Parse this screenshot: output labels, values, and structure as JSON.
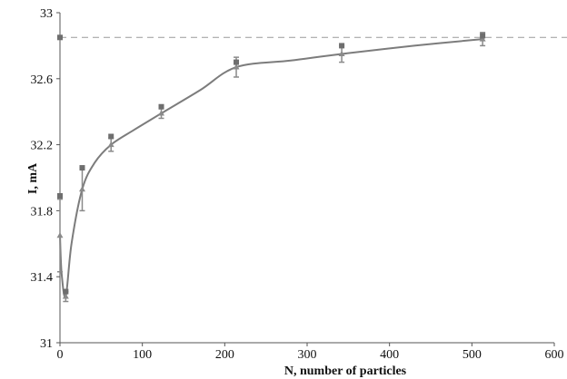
{
  "chart_data": {
    "type": "scatter",
    "title": "",
    "xlabel": "N, number of particles",
    "ylabel": "I, mA",
    "xlim": [
      0,
      600
    ],
    "ylim": [
      31,
      33
    ],
    "x_ticks": [
      "0",
      "100",
      "200",
      "300",
      "400",
      "500",
      "600"
    ],
    "y_ticks": [
      "31",
      "31.4",
      "31.8",
      "32.2",
      "32.6",
      "33"
    ],
    "grid": false,
    "legend": "none",
    "reference_line": {
      "y": 32.85,
      "style": "dashed",
      "color": "#9a9a9a"
    },
    "series": [
      {
        "marker": "square",
        "color": "#6e6e6e",
        "points": [
          {
            "x": 0,
            "y": 32.85
          },
          {
            "x": 0,
            "y": 31.89
          },
          {
            "x": 7,
            "y": 31.31
          },
          {
            "x": 27,
            "y": 32.06
          },
          {
            "x": 62,
            "y": 32.25
          },
          {
            "x": 123,
            "y": 32.43
          },
          {
            "x": 214,
            "y": 32.7
          },
          {
            "x": 342,
            "y": 32.8
          },
          {
            "x": 513,
            "y": 32.86
          }
        ]
      },
      {
        "marker": "triangle",
        "color": "#8a8a8a",
        "error_bars": true,
        "points": [
          {
            "x": 0,
            "y": 31.65,
            "err": 0.22
          },
          {
            "x": 7,
            "y": 31.28,
            "err": 0.03
          },
          {
            "x": 27,
            "y": 31.93,
            "err": 0.13
          },
          {
            "x": 62,
            "y": 32.2,
            "err": 0.04
          },
          {
            "x": 123,
            "y": 32.39,
            "err": 0.03
          },
          {
            "x": 214,
            "y": 32.67,
            "err": 0.06
          },
          {
            "x": 342,
            "y": 32.75,
            "err": 0.05
          },
          {
            "x": 513,
            "y": 32.84,
            "err": 0.04
          }
        ]
      }
    ],
    "trend_curve": {
      "color": "#7c7c7c",
      "points": [
        {
          "x": 0,
          "y": 31.65
        },
        {
          "x": 2,
          "y": 31.42
        },
        {
          "x": 7,
          "y": 31.28
        },
        {
          "x": 14,
          "y": 31.6
        },
        {
          "x": 27,
          "y": 31.93
        },
        {
          "x": 42,
          "y": 32.09
        },
        {
          "x": 62,
          "y": 32.2
        },
        {
          "x": 90,
          "y": 32.29
        },
        {
          "x": 123,
          "y": 32.39
        },
        {
          "x": 170,
          "y": 32.53
        },
        {
          "x": 214,
          "y": 32.67
        },
        {
          "x": 280,
          "y": 32.71
        },
        {
          "x": 342,
          "y": 32.75
        },
        {
          "x": 430,
          "y": 32.8
        },
        {
          "x": 513,
          "y": 32.84
        }
      ]
    }
  }
}
